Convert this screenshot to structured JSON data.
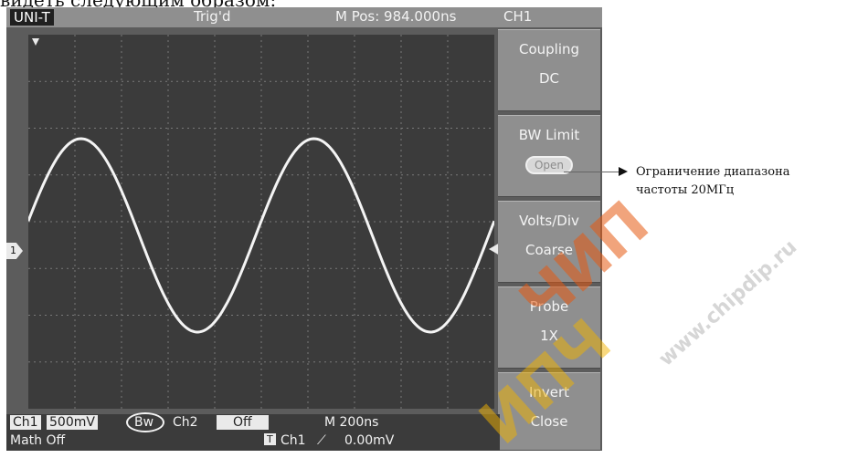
{
  "caption_top": "видеть следующим образом:",
  "topbar": {
    "brand": "UNI-T",
    "trigger_status": "Trig'd",
    "m_pos": "M Pos: 984.000ns",
    "menu_channel": "CH1"
  },
  "channel_marker": "1",
  "side_menu": [
    {
      "title": "Coupling",
      "value": "DC"
    },
    {
      "title": "BW Limit",
      "value": "Open"
    },
    {
      "title": "Volts/Div",
      "value": "Coarse"
    },
    {
      "title": "Probe",
      "value": "1X"
    },
    {
      "title": "Invert",
      "value": "Close"
    }
  ],
  "status_bar": {
    "ch1_label": "Ch1",
    "ch1_scale": "500mV",
    "bw_flag": "Bw",
    "ch2_label": "Ch2",
    "ch2_state": "Off",
    "timebase": "M 200ns",
    "math": "Math Off",
    "trigger_tag": "T",
    "trigger_source": "Ch1",
    "trigger_slope": "⟋",
    "trigger_level": "0.00mV"
  },
  "callout": {
    "line1": "Ограничение диапазона",
    "line2": "частоты 20МГц"
  },
  "watermark": {
    "text_red": "ЧИП",
    "text_yellow": "ИПЧ",
    "url": "www.chipdip.ru"
  },
  "waveform": {
    "type": "sine",
    "cycles": 2,
    "color": "#f4f4f4"
  }
}
